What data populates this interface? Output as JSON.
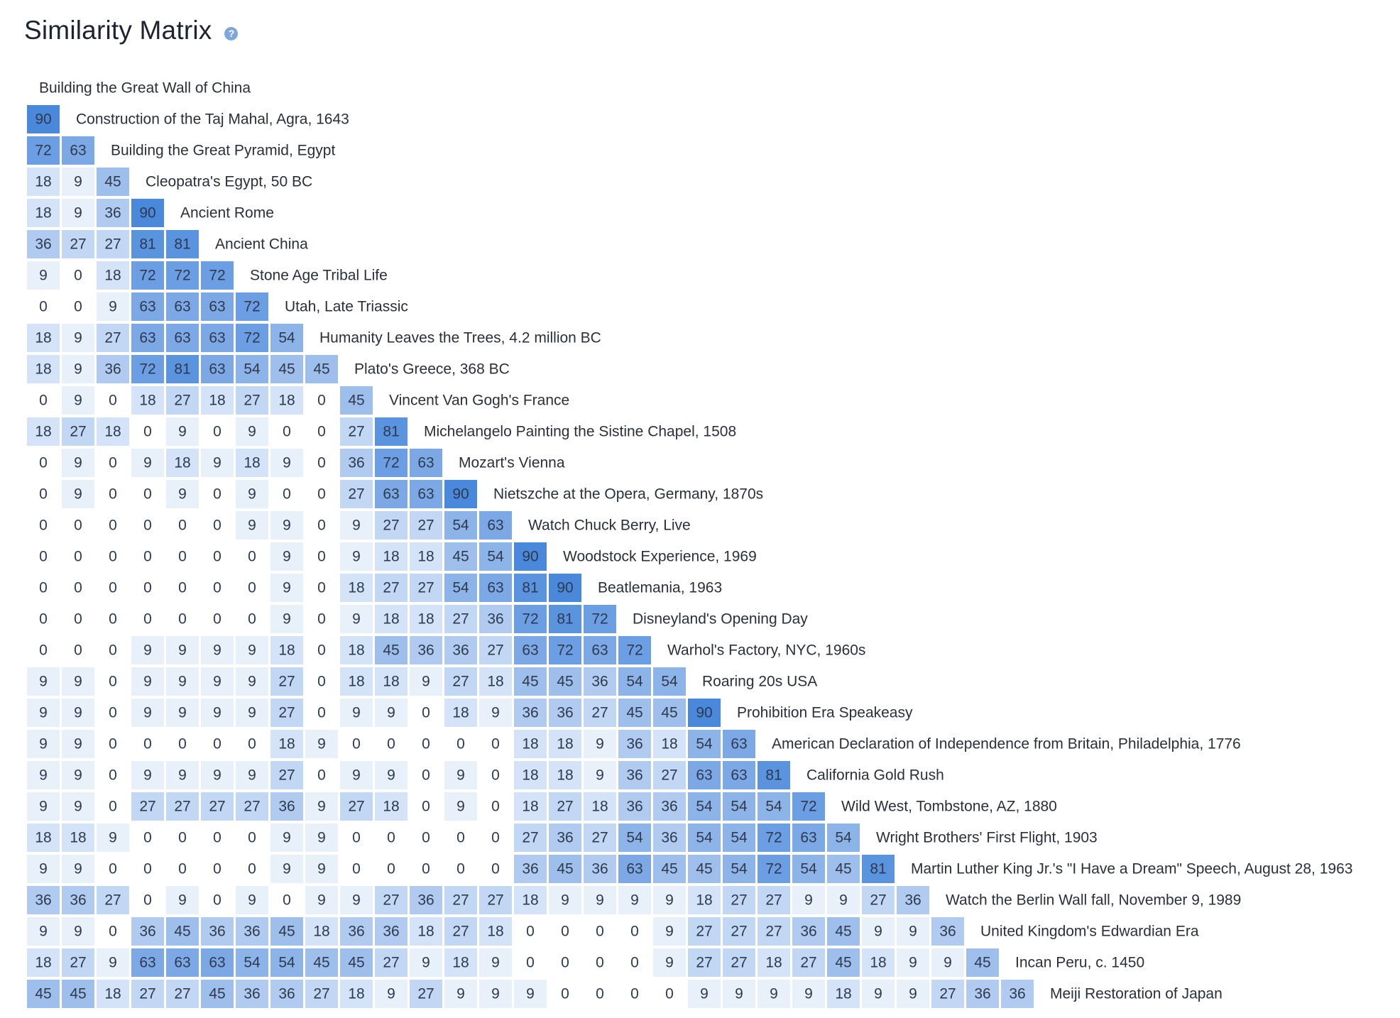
{
  "header": {
    "title": "Similarity Matrix",
    "help_icon": "question-circle-icon"
  },
  "colors": {
    "max": "#4a88db",
    "min": "#ffffff",
    "text": "#2e3a4f"
  },
  "chart_data": {
    "type": "heatmap",
    "layout": "lower-triangular",
    "title": "Similarity Matrix",
    "value_range": [
      0,
      90
    ],
    "labels": [
      "Building the Great Wall of China",
      "Construction of the Taj Mahal, Agra, 1643",
      "Building the Great Pyramid, Egypt",
      "Cleopatra's Egypt, 50 BC",
      "Ancient Rome",
      "Ancient China",
      "Stone Age Tribal Life",
      "Utah, Late Triassic",
      "Humanity Leaves the Trees, 4.2 million BC",
      "Plato's Greece, 368 BC",
      "Vincent Van Gogh's France",
      "Michelangelo Painting the Sistine Chapel, 1508",
      "Mozart's Vienna",
      "Nietszche at the Opera, Germany, 1870s",
      "Watch Chuck Berry, Live",
      "Woodstock Experience, 1969",
      "Beatlemania, 1963",
      "Disneyland's Opening Day",
      "Warhol's Factory, NYC, 1960s",
      "Roaring 20s USA",
      "Prohibition Era Speakeasy",
      "American Declaration of Independence from Britain, Philadelphia, 1776",
      "California Gold Rush",
      "Wild West, Tombstone, AZ, 1880",
      "Wright Brothers' First Flight, 1903",
      "Martin Luther King Jr.'s \"I Have a Dream\" Speech, August 28, 1963",
      "Watch the Berlin Wall fall, November 9, 1989",
      "United Kingdom's Edwardian Era",
      "Incan Peru, c. 1450",
      "Meiji Restoration of Japan"
    ],
    "rows": [
      [],
      [
        90
      ],
      [
        72,
        63
      ],
      [
        18,
        9,
        45
      ],
      [
        18,
        9,
        36,
        90
      ],
      [
        36,
        27,
        27,
        81,
        81
      ],
      [
        9,
        0,
        18,
        72,
        72,
        72
      ],
      [
        0,
        0,
        9,
        63,
        63,
        63,
        72
      ],
      [
        18,
        9,
        27,
        63,
        63,
        63,
        72,
        54
      ],
      [
        18,
        9,
        36,
        72,
        81,
        63,
        54,
        45,
        45
      ],
      [
        0,
        9,
        0,
        18,
        27,
        18,
        27,
        18,
        0,
        45
      ],
      [
        18,
        27,
        18,
        0,
        9,
        0,
        9,
        0,
        0,
        27,
        81
      ],
      [
        0,
        9,
        0,
        9,
        18,
        9,
        18,
        9,
        0,
        36,
        72,
        63
      ],
      [
        0,
        9,
        0,
        0,
        9,
        0,
        9,
        0,
        0,
        27,
        63,
        63,
        90
      ],
      [
        0,
        0,
        0,
        0,
        0,
        0,
        9,
        9,
        0,
        9,
        27,
        27,
        54,
        63
      ],
      [
        0,
        0,
        0,
        0,
        0,
        0,
        0,
        9,
        0,
        9,
        18,
        18,
        45,
        54,
        90
      ],
      [
        0,
        0,
        0,
        0,
        0,
        0,
        0,
        9,
        0,
        18,
        27,
        27,
        54,
        63,
        81,
        90
      ],
      [
        0,
        0,
        0,
        0,
        0,
        0,
        0,
        9,
        0,
        9,
        18,
        18,
        27,
        36,
        72,
        81,
        72
      ],
      [
        0,
        0,
        0,
        9,
        9,
        9,
        9,
        18,
        0,
        18,
        45,
        36,
        36,
        27,
        63,
        72,
        63,
        72
      ],
      [
        9,
        9,
        0,
        9,
        9,
        9,
        9,
        27,
        0,
        18,
        18,
        9,
        27,
        18,
        45,
        45,
        36,
        54,
        54
      ],
      [
        9,
        9,
        0,
        9,
        9,
        9,
        9,
        27,
        0,
        9,
        9,
        0,
        18,
        9,
        36,
        36,
        27,
        45,
        45,
        90
      ],
      [
        9,
        9,
        0,
        0,
        0,
        0,
        0,
        18,
        9,
        0,
        0,
        0,
        0,
        0,
        18,
        18,
        9,
        36,
        18,
        54,
        63
      ],
      [
        9,
        9,
        0,
        9,
        9,
        9,
        9,
        27,
        0,
        9,
        9,
        0,
        9,
        0,
        18,
        18,
        9,
        36,
        27,
        63,
        63,
        81
      ],
      [
        9,
        9,
        0,
        27,
        27,
        27,
        27,
        36,
        9,
        27,
        18,
        0,
        9,
        0,
        18,
        27,
        18,
        36,
        36,
        54,
        54,
        54,
        72
      ],
      [
        18,
        18,
        9,
        0,
        0,
        0,
        0,
        9,
        9,
        0,
        0,
        0,
        0,
        0,
        27,
        36,
        27,
        54,
        36,
        54,
        54,
        72,
        63,
        54
      ],
      [
        9,
        9,
        0,
        0,
        0,
        0,
        0,
        9,
        9,
        0,
        0,
        0,
        0,
        0,
        36,
        45,
        36,
        63,
        45,
        45,
        54,
        72,
        54,
        45,
        81
      ],
      [
        36,
        36,
        27,
        0,
        9,
        0,
        9,
        0,
        9,
        9,
        27,
        36,
        27,
        27,
        18,
        9,
        9,
        9,
        9,
        18,
        27,
        27,
        9,
        9,
        27,
        36
      ],
      [
        9,
        9,
        0,
        36,
        45,
        36,
        36,
        45,
        18,
        36,
        36,
        18,
        27,
        18,
        0,
        0,
        0,
        0,
        9,
        27,
        27,
        27,
        36,
        45,
        9,
        9,
        36
      ],
      [
        18,
        27,
        9,
        63,
        63,
        63,
        54,
        54,
        45,
        45,
        27,
        9,
        18,
        9,
        0,
        0,
        0,
        0,
        9,
        27,
        27,
        18,
        27,
        45,
        18,
        9,
        9,
        45
      ],
      [
        45,
        45,
        18,
        27,
        27,
        45,
        36,
        36,
        27,
        18,
        9,
        27,
        9,
        9,
        9,
        0,
        0,
        0,
        0,
        9,
        9,
        9,
        9,
        18,
        9,
        9,
        27,
        36,
        36
      ]
    ]
  }
}
